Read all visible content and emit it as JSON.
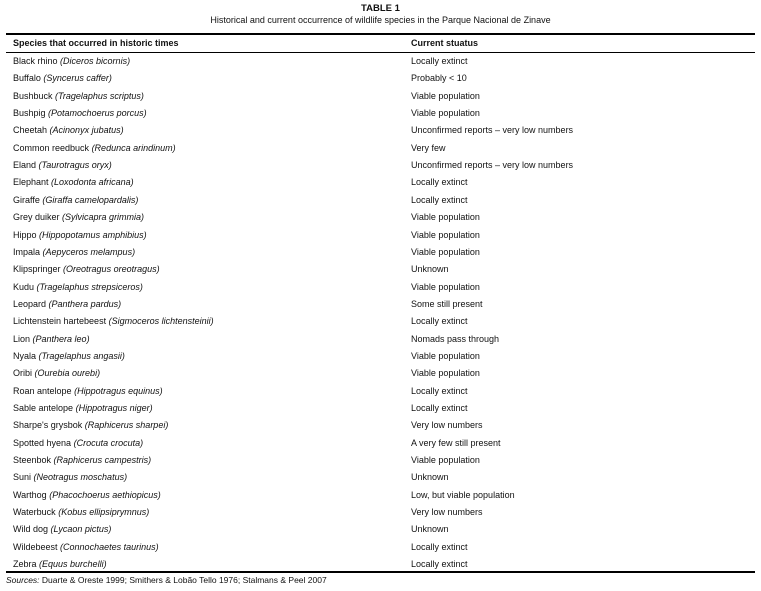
{
  "table": {
    "label": "TABLE 1",
    "caption": "Historical and current occurrence of wildlife species in the Parque Nacional de Zinave",
    "headers": [
      "Species that occurred in historic times",
      "Current stuatus"
    ],
    "rows": [
      {
        "common": "Black rhino",
        "latin": "(Diceros bicornis)",
        "status": "Locally extinct"
      },
      {
        "common": "Buffalo",
        "latin": "(Syncerus caffer)",
        "status": "Probably < 10"
      },
      {
        "common": "Bushbuck",
        "latin": "(Tragelaphus scriptus)",
        "status": "Viable population"
      },
      {
        "common": "Bushpig",
        "latin": "(Potamochoerus porcus)",
        "status": "Viable population"
      },
      {
        "common": "Cheetah",
        "latin": "(Acinonyx jubatus)",
        "status": "Unconfirmed reports – very low  numbers"
      },
      {
        "common": "Common reedbuck",
        "latin": "(Redunca arindinum)",
        "status": "Very few"
      },
      {
        "common": "Eland",
        "latin": "(Taurotragus oryx)",
        "status": "Unconfirmed reports – very low numbers"
      },
      {
        "common": "Elephant",
        "latin": "(Loxodonta africana)",
        "status": "Locally extinct"
      },
      {
        "common": "Giraffe",
        "latin": "(Giraffa camelopardalis)",
        "status": "Locally extinct"
      },
      {
        "common": "Grey duiker",
        "latin": "(Sylvicapra grimmia)",
        "status": "Viable population"
      },
      {
        "common": "Hippo",
        "latin": "(Hippopotamus amphibius)",
        "status": "Viable population"
      },
      {
        "common": "Impala",
        "latin": "(Aepyceros melampus)",
        "status": "Viable population"
      },
      {
        "common": "Klipspringer",
        "latin": "(Oreotragus oreotragus)",
        "status": "Unknown"
      },
      {
        "common": "Kudu",
        "latin": "(Tragelaphus strepsiceros)",
        "status": "Viable population"
      },
      {
        "common": "Leopard",
        "latin": "(Panthera pardus)",
        "status": "Some still present"
      },
      {
        "common": "Lichtenstein hartebeest",
        "latin": "(Sigmoceros lichtensteinii)",
        "status": "Locally extinct"
      },
      {
        "common": "Lion",
        "latin": "(Panthera leo)",
        "status": "Nomads pass through"
      },
      {
        "common": "Nyala",
        "latin": "(Tragelaphus angasii)",
        "status": "Viable population"
      },
      {
        "common": "Oribi",
        "latin": "(Ourebia ourebi)",
        "status": "Viable population"
      },
      {
        "common": "Roan antelope",
        "latin": "(Hippotragus equinus)",
        "status": "Locally extinct"
      },
      {
        "common": "Sable antelope",
        "latin": "(Hippotragus niger)",
        "status": "Locally extinct"
      },
      {
        "common": "Sharpe's grysbok",
        "latin": "(Raphicerus sharpei)",
        "status": "Very low numbers"
      },
      {
        "common": "Spotted hyena",
        "latin": "(Crocuta crocuta)",
        "status": "A very few still present"
      },
      {
        "common": "Steenbok",
        "latin": "(Raphicerus campestris)",
        "status": "Viable population"
      },
      {
        "common": "Suni",
        "latin": "(Neotragus moschatus)",
        "status": "Unknown"
      },
      {
        "common": "Warthog",
        "latin": "(Phacochoerus aethiopicus)",
        "status": "Low, but viable population"
      },
      {
        "common": "Waterbuck",
        "latin": "(Kobus ellipsiprymnus)",
        "status": "Very low numbers"
      },
      {
        "common": "Wild dog",
        "latin": "(Lycaon pictus)",
        "status": "Unknown"
      },
      {
        "common": "Wildebeest",
        "latin": "(Connochaetes taurinus)",
        "status": "Locally extinct"
      },
      {
        "common": "Zebra",
        "latin": "(Equus burchelli)",
        "status": "Locally extinct"
      }
    ],
    "sources_label": "Sources:",
    "sources": "Duarte & Oreste 1999; Smithers & Lobão Tello 1976; Stalmans & Peel 2007"
  }
}
